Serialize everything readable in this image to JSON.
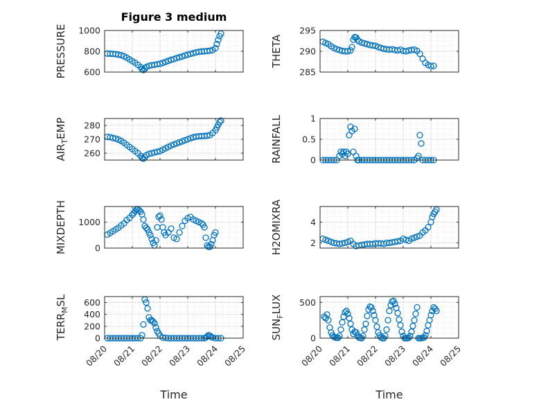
{
  "figure_title": "Figure 3 medium",
  "x_axis_label": "Time",
  "x_tick_labels": [
    "08/20",
    "08/21",
    "08/22",
    "08/23",
    "08/24",
    "08/25"
  ],
  "marker_color": "#0072bd",
  "chart_data": [
    {
      "type": "scatter",
      "title": "Figure 3 medium",
      "ylabel": "PRESSURE",
      "xlim": [
        0,
        5
      ],
      "ylim": [
        600,
        1000
      ],
      "yticks": [
        600,
        800,
        1000
      ],
      "x": [
        0.1,
        0.2,
        0.3,
        0.4,
        0.5,
        0.6,
        0.7,
        0.8,
        0.9,
        1.0,
        1.1,
        1.2,
        1.3,
        1.35,
        1.4,
        1.45,
        1.5,
        1.6,
        1.7,
        1.8,
        1.9,
        2.0,
        2.1,
        2.2,
        2.3,
        2.4,
        2.5,
        2.6,
        2.7,
        2.8,
        2.9,
        3.0,
        3.1,
        3.2,
        3.3,
        3.4,
        3.5,
        3.6,
        3.7,
        3.8,
        3.9,
        4.0,
        4.05,
        4.1,
        4.15,
        4.2
      ],
      "y": [
        778,
        777,
        775,
        772,
        768,
        762,
        752,
        738,
        722,
        705,
        690,
        670,
        648,
        628,
        620,
        632,
        648,
        660,
        666,
        670,
        675,
        680,
        688,
        698,
        708,
        718,
        725,
        735,
        742,
        750,
        760,
        768,
        775,
        782,
        790,
        795,
        798,
        800,
        802,
        806,
        812,
        830,
        870,
        910,
        945,
        970
      ],
      "grid": true
    },
    {
      "type": "scatter",
      "ylabel": "THETA",
      "xlim": [
        0,
        5
      ],
      "ylim": [
        285,
        295
      ],
      "yticks": [
        285,
        290,
        295
      ],
      "x": [
        0.1,
        0.2,
        0.3,
        0.4,
        0.5,
        0.6,
        0.7,
        0.8,
        0.9,
        1.0,
        1.1,
        1.15,
        1.2,
        1.25,
        1.3,
        1.35,
        1.4,
        1.5,
        1.6,
        1.7,
        1.8,
        1.9,
        2.0,
        2.1,
        2.2,
        2.3,
        2.4,
        2.5,
        2.6,
        2.7,
        2.8,
        2.9,
        3.0,
        3.1,
        3.2,
        3.3,
        3.4,
        3.5,
        3.6,
        3.7,
        3.8,
        3.9,
        4.0,
        4.1
      ],
      "y": [
        292.3,
        292.0,
        291.7,
        291.2,
        290.8,
        290.5,
        290.3,
        290.1,
        290.0,
        290.0,
        290.2,
        291.0,
        292.8,
        293.4,
        293.3,
        292.8,
        292.4,
        292.1,
        291.9,
        291.7,
        291.5,
        291.4,
        291.3,
        291.0,
        290.8,
        290.6,
        290.5,
        290.4,
        290.5,
        290.3,
        290.2,
        290.4,
        290.1,
        290.0,
        290.2,
        290.3,
        290.4,
        290.1,
        289.4,
        288.2,
        287.2,
        286.7,
        286.4,
        286.5
      ],
      "grid": true
    },
    {
      "type": "scatter",
      "ylabel": "AIR_TEMP",
      "ylabel_parts": [
        "AIR",
        "T",
        "EMP"
      ],
      "xlim": [
        0,
        5
      ],
      "ylim": [
        255,
        285
      ],
      "yticks": [
        260,
        270,
        280
      ],
      "x": [
        0.1,
        0.2,
        0.3,
        0.4,
        0.5,
        0.6,
        0.7,
        0.8,
        0.9,
        1.0,
        1.1,
        1.2,
        1.3,
        1.35,
        1.4,
        1.45,
        1.5,
        1.6,
        1.7,
        1.8,
        1.9,
        2.0,
        2.1,
        2.2,
        2.3,
        2.4,
        2.5,
        2.6,
        2.7,
        2.8,
        2.9,
        3.0,
        3.1,
        3.2,
        3.3,
        3.4,
        3.5,
        3.6,
        3.7,
        3.8,
        3.9,
        4.0,
        4.05,
        4.1,
        4.15,
        4.2
      ],
      "y": [
        271.8,
        271.5,
        271.0,
        270.5,
        269.8,
        268.8,
        267.5,
        266.0,
        264.5,
        263.0,
        261.5,
        260.0,
        258.0,
        256.5,
        256.0,
        257.0,
        258.5,
        259.5,
        260.0,
        260.5,
        261.0,
        261.5,
        262.5,
        263.5,
        264.5,
        265.5,
        266.3,
        267.0,
        267.8,
        268.5,
        269.3,
        270.0,
        270.8,
        271.4,
        271.9,
        272.2,
        272.3,
        272.4,
        272.6,
        273.0,
        274.5,
        276.5,
        278.5,
        280.5,
        282.5,
        283.5
      ],
      "grid": true
    },
    {
      "type": "scatter",
      "ylabel": "RAINFALL",
      "xlim": [
        0,
        5
      ],
      "ylim": [
        0,
        1
      ],
      "yticks": [
        0,
        0.5,
        1
      ],
      "ytick_labels": [
        "0",
        "0.5",
        "1"
      ],
      "x": [
        0.1,
        0.2,
        0.3,
        0.4,
        0.5,
        0.6,
        0.7,
        0.75,
        0.8,
        0.85,
        0.9,
        0.95,
        1.0,
        1.05,
        1.1,
        1.15,
        1.2,
        1.25,
        1.3,
        1.35,
        1.4,
        1.5,
        1.6,
        1.7,
        1.8,
        1.9,
        2.0,
        2.1,
        2.2,
        2.3,
        2.4,
        2.5,
        2.6,
        2.7,
        2.8,
        2.9,
        3.0,
        3.1,
        3.2,
        3.3,
        3.4,
        3.5,
        3.55,
        3.6,
        3.65,
        3.7,
        3.8,
        3.9,
        4.0,
        4.1
      ],
      "y": [
        0,
        0,
        0,
        0,
        0,
        0,
        0.1,
        0.2,
        0.15,
        0.2,
        0.1,
        0.2,
        0.15,
        0.6,
        0.8,
        0.7,
        0.2,
        0.75,
        0.1,
        0,
        0,
        0,
        0,
        0,
        0,
        0,
        0,
        0,
        0,
        0,
        0,
        0,
        0,
        0,
        0,
        0,
        0,
        0,
        0,
        0,
        0,
        0.05,
        0.1,
        0.6,
        0.4,
        0,
        0,
        0,
        0,
        0
      ],
      "grid": true
    },
    {
      "type": "scatter",
      "ylabel": "MIXDEPTH",
      "xlim": [
        0,
        5
      ],
      "ylim": [
        0,
        1600
      ],
      "yticks": [
        0,
        1000
      ],
      "x": [
        0.1,
        0.2,
        0.3,
        0.4,
        0.5,
        0.6,
        0.7,
        0.8,
        0.9,
        1.0,
        1.05,
        1.1,
        1.15,
        1.2,
        1.25,
        1.3,
        1.35,
        1.4,
        1.45,
        1.5,
        1.55,
        1.6,
        1.65,
        1.7,
        1.75,
        1.8,
        1.85,
        1.9,
        1.95,
        2.0,
        2.05,
        2.1,
        2.15,
        2.2,
        2.3,
        2.4,
        2.5,
        2.6,
        2.7,
        2.8,
        2.9,
        3.0,
        3.1,
        3.2,
        3.3,
        3.4,
        3.5,
        3.55,
        3.6,
        3.65,
        3.7,
        3.75,
        3.8,
        3.85,
        3.9,
        3.95,
        4.0
      ],
      "y": [
        520,
        580,
        650,
        720,
        780,
        870,
        950,
        1080,
        1160,
        1280,
        1350,
        1420,
        1480,
        1500,
        1450,
        1400,
        1300,
        1100,
        850,
        780,
        720,
        600,
        500,
        350,
        200,
        100,
        300,
        800,
        1200,
        1250,
        1100,
        800,
        600,
        500,
        600,
        750,
        400,
        350,
        600,
        850,
        1050,
        1150,
        1200,
        1100,
        1050,
        1000,
        950,
        900,
        800,
        400,
        100,
        50,
        50,
        150,
        300,
        500,
        600
      ],
      "grid": true
    },
    {
      "type": "scatter",
      "ylabel": "H2OMIXRA",
      "xlim": [
        0,
        5
      ],
      "ylim": [
        1.5,
        5.5
      ],
      "yticks": [
        2,
        4
      ],
      "x": [
        0.1,
        0.2,
        0.3,
        0.4,
        0.5,
        0.6,
        0.7,
        0.8,
        0.9,
        1.0,
        1.1,
        1.2,
        1.3,
        1.4,
        1.5,
        1.6,
        1.7,
        1.8,
        1.9,
        2.0,
        2.1,
        2.2,
        2.3,
        2.4,
        2.5,
        2.6,
        2.7,
        2.8,
        2.9,
        3.0,
        3.1,
        3.2,
        3.3,
        3.4,
        3.5,
        3.6,
        3.7,
        3.8,
        3.9,
        4.0,
        4.05,
        4.1,
        4.15,
        4.2
      ],
      "y": [
        2.4,
        2.3,
        2.2,
        2.1,
        2.0,
        1.95,
        1.9,
        1.95,
        2.0,
        2.1,
        2.2,
        1.9,
        1.7,
        1.75,
        1.8,
        1.85,
        1.9,
        1.9,
        1.9,
        1.95,
        1.95,
        1.95,
        1.9,
        2.0,
        2.0,
        2.05,
        2.1,
        2.15,
        2.2,
        2.4,
        2.3,
        2.2,
        2.4,
        2.5,
        2.6,
        2.7,
        3.0,
        3.2,
        3.5,
        4.0,
        4.5,
        4.8,
        5.0,
        5.2
      ],
      "grid": true
    },
    {
      "type": "scatter",
      "ylabel": "TERR_MSL",
      "ylabel_parts": [
        "TERR",
        "M",
        "SL"
      ],
      "xlim": [
        0,
        5
      ],
      "ylim": [
        0,
        700
      ],
      "yticks": [
        0,
        200,
        400,
        600
      ],
      "x": [
        0.1,
        0.2,
        0.3,
        0.4,
        0.5,
        0.6,
        0.7,
        0.8,
        0.9,
        1.0,
        1.1,
        1.2,
        1.3,
        1.35,
        1.4,
        1.45,
        1.5,
        1.55,
        1.6,
        1.65,
        1.7,
        1.75,
        1.8,
        1.85,
        1.9,
        1.95,
        2.0,
        2.1,
        2.2,
        2.3,
        2.4,
        2.5,
        2.6,
        2.7,
        2.8,
        2.9,
        3.0,
        3.1,
        3.2,
        3.3,
        3.4,
        3.5,
        3.6,
        3.65,
        3.7,
        3.75,
        3.8,
        3.85,
        3.9,
        4.0,
        4.1,
        4.2
      ],
      "y": [
        0,
        0,
        0,
        0,
        0,
        0,
        0,
        0,
        0,
        0,
        0,
        0,
        0,
        50,
        230,
        650,
        600,
        500,
        350,
        300,
        300,
        280,
        250,
        180,
        120,
        80,
        40,
        10,
        5,
        0,
        0,
        0,
        0,
        0,
        0,
        0,
        0,
        0,
        0,
        0,
        0,
        0,
        0,
        10,
        30,
        50,
        40,
        20,
        10,
        0,
        0,
        0
      ],
      "grid": true
    },
    {
      "type": "scatter",
      "ylabel": "SUN_FLUX",
      "ylabel_parts": [
        "SUN",
        "F",
        "LUX"
      ],
      "xlim": [
        0,
        5
      ],
      "ylim": [
        0,
        580
      ],
      "yticks": [
        0,
        500
      ],
      "x": [
        0.15,
        0.2,
        0.25,
        0.3,
        0.35,
        0.4,
        0.45,
        0.5,
        0.55,
        0.6,
        0.65,
        0.7,
        0.75,
        0.8,
        0.85,
        0.9,
        0.95,
        1.0,
        1.05,
        1.1,
        1.15,
        1.2,
        1.25,
        1.3,
        1.35,
        1.4,
        1.45,
        1.5,
        1.55,
        1.6,
        1.65,
        1.7,
        1.75,
        1.8,
        1.85,
        1.9,
        1.95,
        2.0,
        2.05,
        2.1,
        2.15,
        2.2,
        2.25,
        2.3,
        2.35,
        2.4,
        2.45,
        2.5,
        2.55,
        2.6,
        2.65,
        2.7,
        2.75,
        2.8,
        2.85,
        2.9,
        2.95,
        3.0,
        3.05,
        3.1,
        3.15,
        3.2,
        3.25,
        3.3,
        3.35,
        3.4,
        3.45,
        3.5,
        3.55,
        3.6,
        3.65,
        3.7,
        3.75,
        3.8,
        3.85,
        3.9,
        3.95,
        4.0,
        4.05,
        4.1,
        4.15,
        4.2
      ],
      "y": [
        300,
        280,
        330,
        250,
        150,
        80,
        40,
        20,
        10,
        5,
        5,
        30,
        120,
        220,
        300,
        360,
        380,
        340,
        280,
        200,
        120,
        60,
        90,
        80,
        40,
        10,
        5,
        0,
        30,
        120,
        200,
        310,
        400,
        440,
        430,
        380,
        320,
        250,
        160,
        80,
        40,
        10,
        0,
        0,
        30,
        120,
        250,
        380,
        460,
        510,
        520,
        480,
        420,
        350,
        260,
        180,
        90,
        30,
        0,
        0,
        0,
        5,
        30,
        90,
        170,
        250,
        340,
        430,
        0,
        0,
        0,
        5,
        10,
        40,
        100,
        180,
        250,
        320,
        380,
        430,
        410,
        380
      ],
      "grid": true
    }
  ]
}
